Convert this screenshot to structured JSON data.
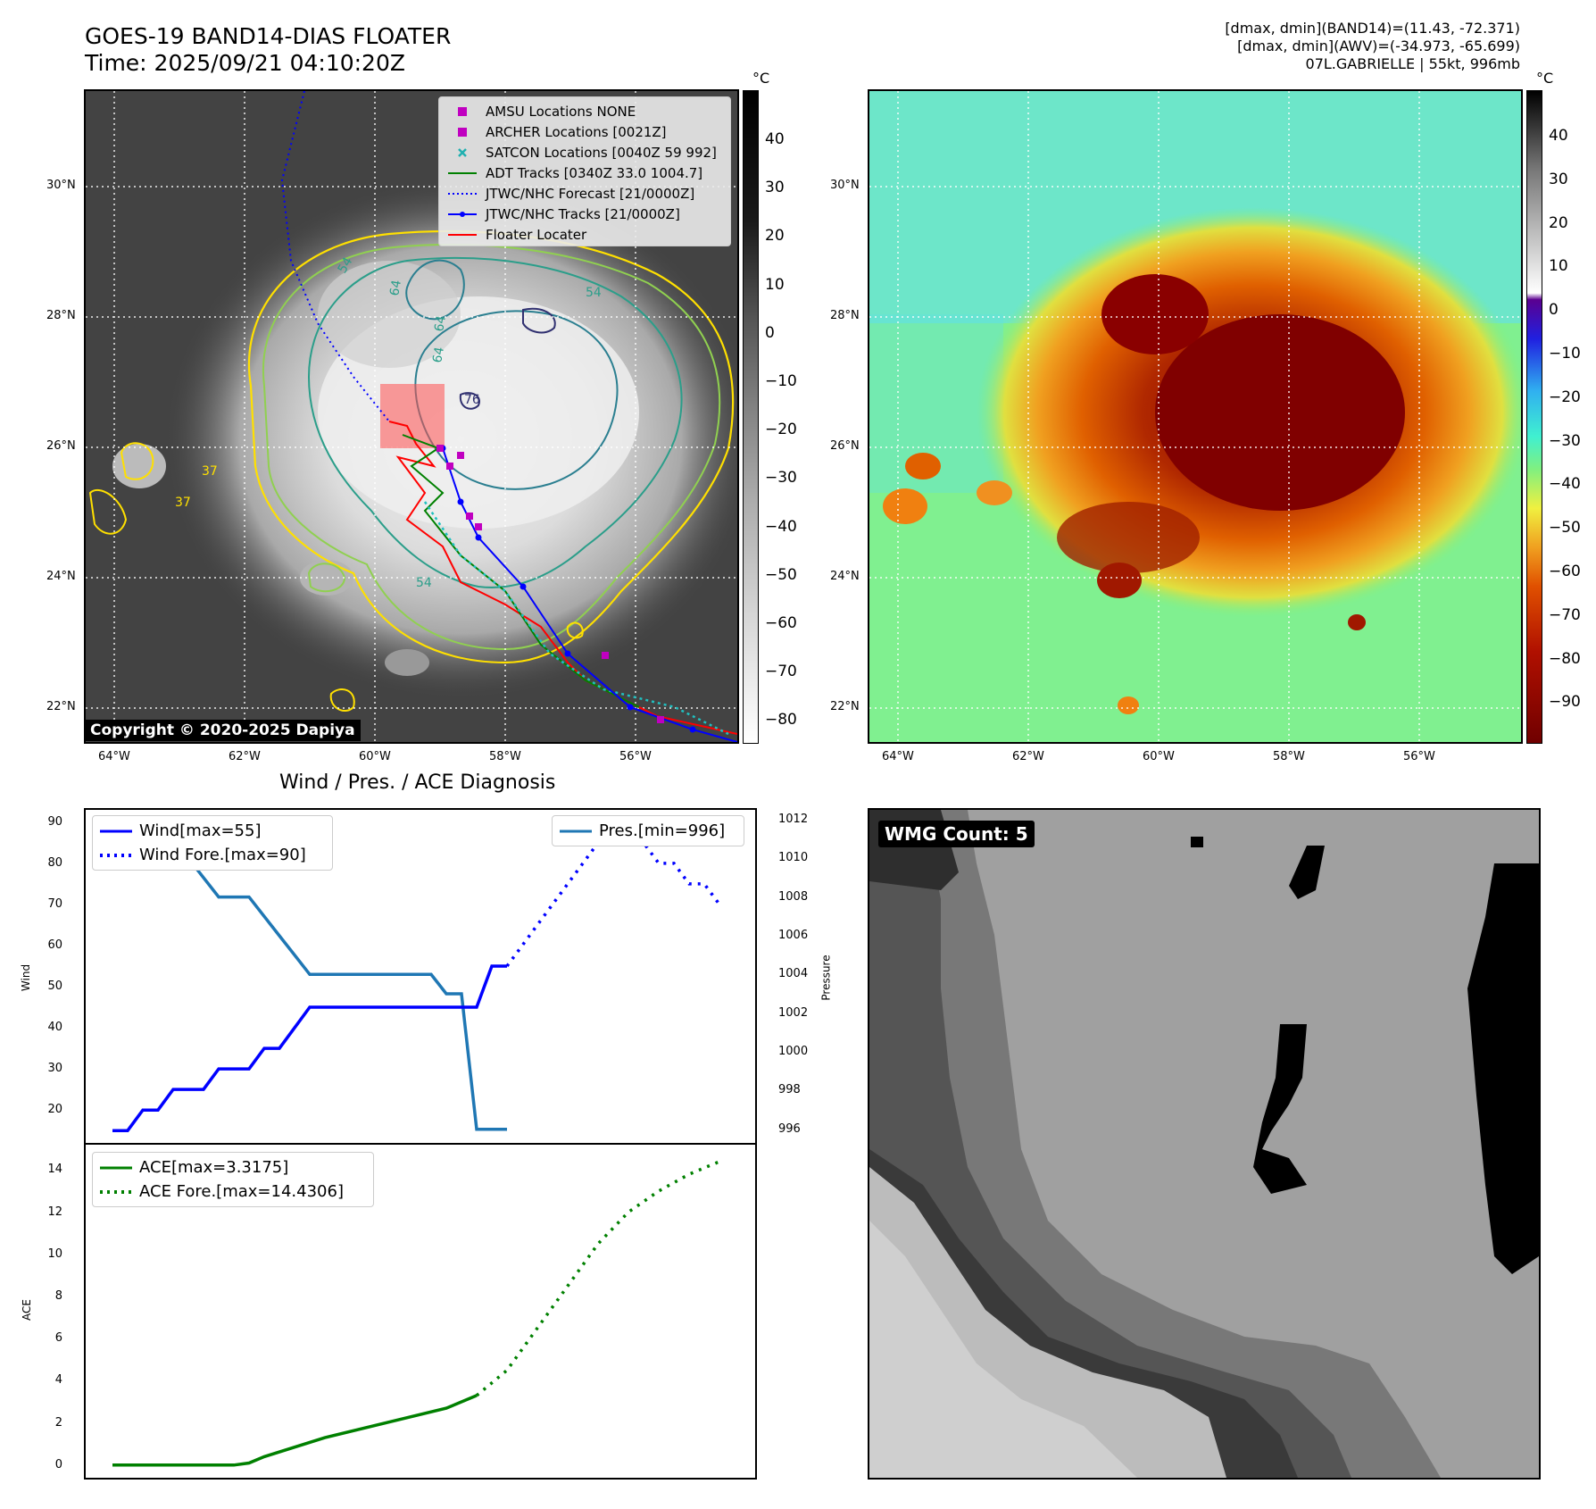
{
  "header": {
    "title_line1": "GOES-19 BAND14-DIAS FLOATER",
    "title_line2": "Time: 2025/09/21 04:10:20Z",
    "info_line1": "[dmax, dmin](BAND14)=(11.43, -72.371)",
    "info_line2": "[dmax, dmin](AWV)=(-34.973, -65.699)",
    "info_line3": "07L.GABRIELLE | 55kt, 996mb"
  },
  "maps": {
    "lat_labels": [
      "30°N",
      "28°N",
      "26°N",
      "24°N",
      "22°N"
    ],
    "lon_labels": [
      "64°W",
      "62°W",
      "60°W",
      "58°W",
      "56°W"
    ],
    "colorbar_unit": "°C",
    "colorbar1_ticks": [
      "40",
      "30",
      "20",
      "10",
      "0",
      "−10",
      "−20",
      "−30",
      "−40",
      "−50",
      "−60",
      "−70",
      "−80"
    ],
    "colorbar2_ticks": [
      "40",
      "30",
      "20",
      "10",
      "0",
      "−10",
      "−20",
      "−30",
      "−40",
      "−50",
      "−60",
      "−70",
      "−80",
      "−90"
    ],
    "contour_labels": [
      "54",
      "64",
      "54",
      "64",
      "64",
      "76",
      "54",
      "37",
      "37"
    ],
    "copyright": "Copyright © 2020-2025 Dapiya",
    "legend": [
      {
        "label": "AMSU Locations NONE",
        "symbol": "square",
        "color": "#c000c0"
      },
      {
        "label": "ARCHER Locations [0021Z]",
        "symbol": "square",
        "color": "#c000c0"
      },
      {
        "label": "SATCON Locations [0040Z 59 992]",
        "symbol": "x",
        "color": "#20b0b0"
      },
      {
        "label": "ADT Tracks [0340Z 33.0 1004.7]",
        "symbol": "line",
        "color": "#008000"
      },
      {
        "label": "JTWC/NHC Forecast [21/0000Z]",
        "symbol": "dotted",
        "color": "#0000ff"
      },
      {
        "label": "JTWC/NHC Tracks [21/0000Z]",
        "symbol": "line-dot",
        "color": "#0000ff"
      },
      {
        "label": "Floater Locater",
        "symbol": "line",
        "color": "#ff0000"
      }
    ]
  },
  "diagnosis": {
    "title": "Wind / Pres. / ACE Diagnosis",
    "wind_ylabel": "Wind",
    "pres_ylabel": "Pressure",
    "ace_ylabel": "ACE",
    "legend_wind": "Wind[max=55]",
    "legend_wind_fore": "Wind Fore.[max=90]",
    "legend_pres": "Pres.[min=996]",
    "legend_ace": "ACE[max=3.3175]",
    "legend_ace_fore": "ACE Fore.[max=14.4306]",
    "wmg_label": "WMG Count: 5"
  },
  "chart_data": [
    {
      "type": "line",
      "title": "Wind / Pres. / ACE Diagnosis",
      "ylabel": "Wind",
      "ylim": [
        12,
        93
      ],
      "yticks": [
        20,
        30,
        40,
        50,
        60,
        70,
        80,
        90
      ],
      "series": [
        {
          "name": "Wind[max=55]",
          "color": "#0000ff",
          "style": "solid",
          "x": [
            0,
            1,
            2,
            3,
            4,
            5,
            6,
            7,
            8,
            9,
            10,
            11,
            12,
            13,
            14,
            15,
            16,
            17,
            18,
            19,
            20,
            21,
            22,
            23,
            24,
            25,
            26
          ],
          "values": [
            15,
            15,
            20,
            20,
            25,
            25,
            25,
            30,
            30,
            30,
            35,
            35,
            40,
            45,
            45,
            45,
            45,
            45,
            45,
            45,
            45,
            45,
            45,
            45,
            45,
            55,
            55
          ]
        },
        {
          "name": "Wind Fore.[max=90]",
          "color": "#0000ff",
          "style": "dotted",
          "x": [
            26,
            27,
            28,
            29,
            30,
            31,
            32,
            33,
            34,
            35,
            36,
            37,
            38,
            39,
            40
          ],
          "values": [
            55,
            60,
            65,
            70,
            75,
            80,
            85,
            90,
            90,
            85,
            80,
            80,
            75,
            75,
            70
          ]
        }
      ]
    },
    {
      "type": "line",
      "ylabel": "Pressure",
      "ylim": [
        995.3,
        1012.5
      ],
      "yticks": [
        996,
        998,
        1000,
        1002,
        1004,
        1006,
        1008,
        1010,
        1012
      ],
      "series": [
        {
          "name": "Pres.[min=996]",
          "color": "#1f77b4",
          "style": "solid",
          "x": [
            0,
            1,
            2,
            3,
            4,
            5,
            6,
            7,
            8,
            9,
            10,
            11,
            12,
            13,
            14,
            15,
            16,
            17,
            18,
            19,
            20,
            21,
            22,
            23,
            24,
            25,
            26
          ],
          "values": [
            1012,
            1012,
            1011,
            1011,
            1010,
            1010,
            1009,
            1008,
            1008,
            1008,
            1007,
            1006,
            1005,
            1004,
            1004,
            1004,
            1004,
            1004,
            1004,
            1004,
            1004,
            1004,
            1003,
            1003,
            996,
            996,
            996
          ]
        }
      ]
    },
    {
      "type": "line",
      "ylabel": "ACE",
      "ylim": [
        -0.6,
        15.2
      ],
      "yticks": [
        0,
        2,
        4,
        6,
        8,
        10,
        12,
        14
      ],
      "series": [
        {
          "name": "ACE[max=3.3175]",
          "color": "#008000",
          "style": "solid",
          "x": [
            0,
            8,
            9,
            10,
            14,
            18,
            22,
            24
          ],
          "values": [
            0,
            0,
            0.1,
            0.4,
            1.3,
            2.0,
            2.7,
            3.3
          ]
        },
        {
          "name": "ACE Fore.[max=14.4306]",
          "color": "#008000",
          "style": "dotted",
          "x": [
            24,
            26,
            28,
            30,
            32,
            34,
            36,
            38,
            40
          ],
          "values": [
            3.3,
            4.5,
            6.5,
            8.5,
            10.5,
            12.0,
            13.0,
            13.8,
            14.4
          ]
        }
      ]
    }
  ]
}
